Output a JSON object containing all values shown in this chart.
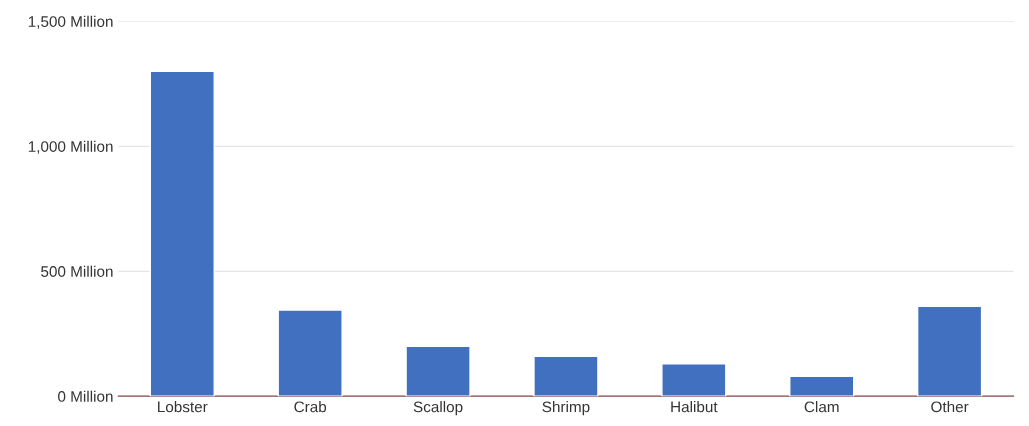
{
  "chart_data": {
    "type": "bar",
    "categories": [
      "Lobster",
      "Crab",
      "Scallop",
      "Shrimp",
      "Halibut",
      "Clam",
      "Other"
    ],
    "values": [
      1300,
      345,
      200,
      160,
      130,
      80,
      360
    ],
    "color": "#4270c0",
    "ylim": [
      0,
      1500
    ],
    "yticks": [
      {
        "value": 0,
        "label": "0 Million"
      },
      {
        "value": 500,
        "label": "500 Million"
      },
      {
        "value": 1000,
        "label": "1,000 Million"
      },
      {
        "value": 1500,
        "label": "1,500 Million"
      }
    ],
    "grid": "y",
    "legend": false
  }
}
